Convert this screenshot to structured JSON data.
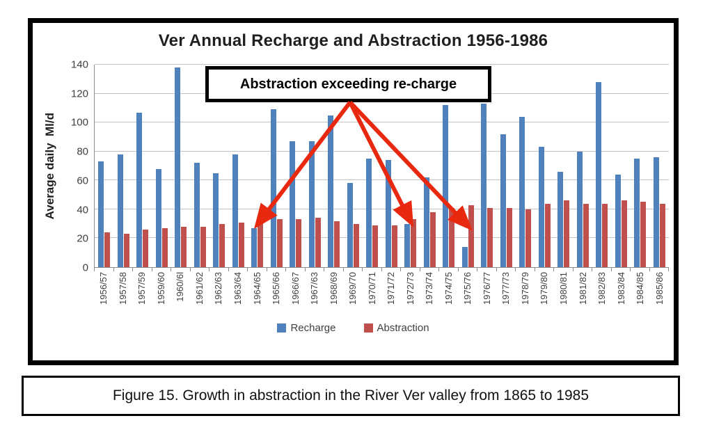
{
  "caption": "Figure 15. Growth in abstraction in the River Ver valley from 1865 to 1985",
  "chart_data": {
    "type": "bar",
    "title": "Ver Annual Recharge and Abstraction 1956-1986",
    "xlabel": "",
    "ylabel": "Average daily  Ml/d",
    "ylim": [
      0,
      140
    ],
    "yticks": [
      0,
      20,
      40,
      60,
      80,
      100,
      120,
      140
    ],
    "grid": true,
    "legend_position": "bottom",
    "categories": [
      "1956/57",
      "1957/58",
      "1957/59",
      "1959/60",
      "1960/6l",
      "1961/62",
      "1962/63",
      "1963/64",
      "1964/65",
      "1965/66",
      "1966/67",
      "1967/63",
      "1968/69",
      "1969/70",
      "1970/71",
      "1971/72",
      "1972/73",
      "1973/74",
      "1974/75",
      "1975/76",
      "1976/77",
      "1977/73",
      "1978/79",
      "1979/80",
      "1980/81",
      "1981/82",
      "1982/83",
      "1983/84",
      "1984/85",
      "1985/86"
    ],
    "series": [
      {
        "name": "Recharge",
        "color": "#4F81BD",
        "values": [
          73,
          78,
          107,
          68,
          138,
          72,
          65,
          78,
          27,
          109,
          87,
          87,
          105,
          58,
          75,
          74,
          30,
          62,
          112,
          14,
          113,
          92,
          104,
          83,
          66,
          80,
          128,
          64,
          75,
          76
        ]
      },
      {
        "name": "Abstraction",
        "color": "#C0504D",
        "values": [
          24,
          23,
          26,
          27,
          28,
          28,
          30,
          31,
          33,
          33,
          33,
          34,
          32,
          30,
          29,
          29,
          33,
          38,
          41,
          43,
          41,
          41,
          40,
          44,
          46,
          44,
          44,
          46,
          45,
          44
        ]
      }
    ],
    "annotation": {
      "text": "Abstraction exceeding re-charge",
      "arrow_color": "#E8280F",
      "arrow_targets": [
        "1964/65",
        "1972/73",
        "1975/76"
      ]
    },
    "colors": {
      "grid": "#c3c3c3",
      "axis": "#8a8a8a",
      "tick_text": "#3f3f3f"
    }
  }
}
